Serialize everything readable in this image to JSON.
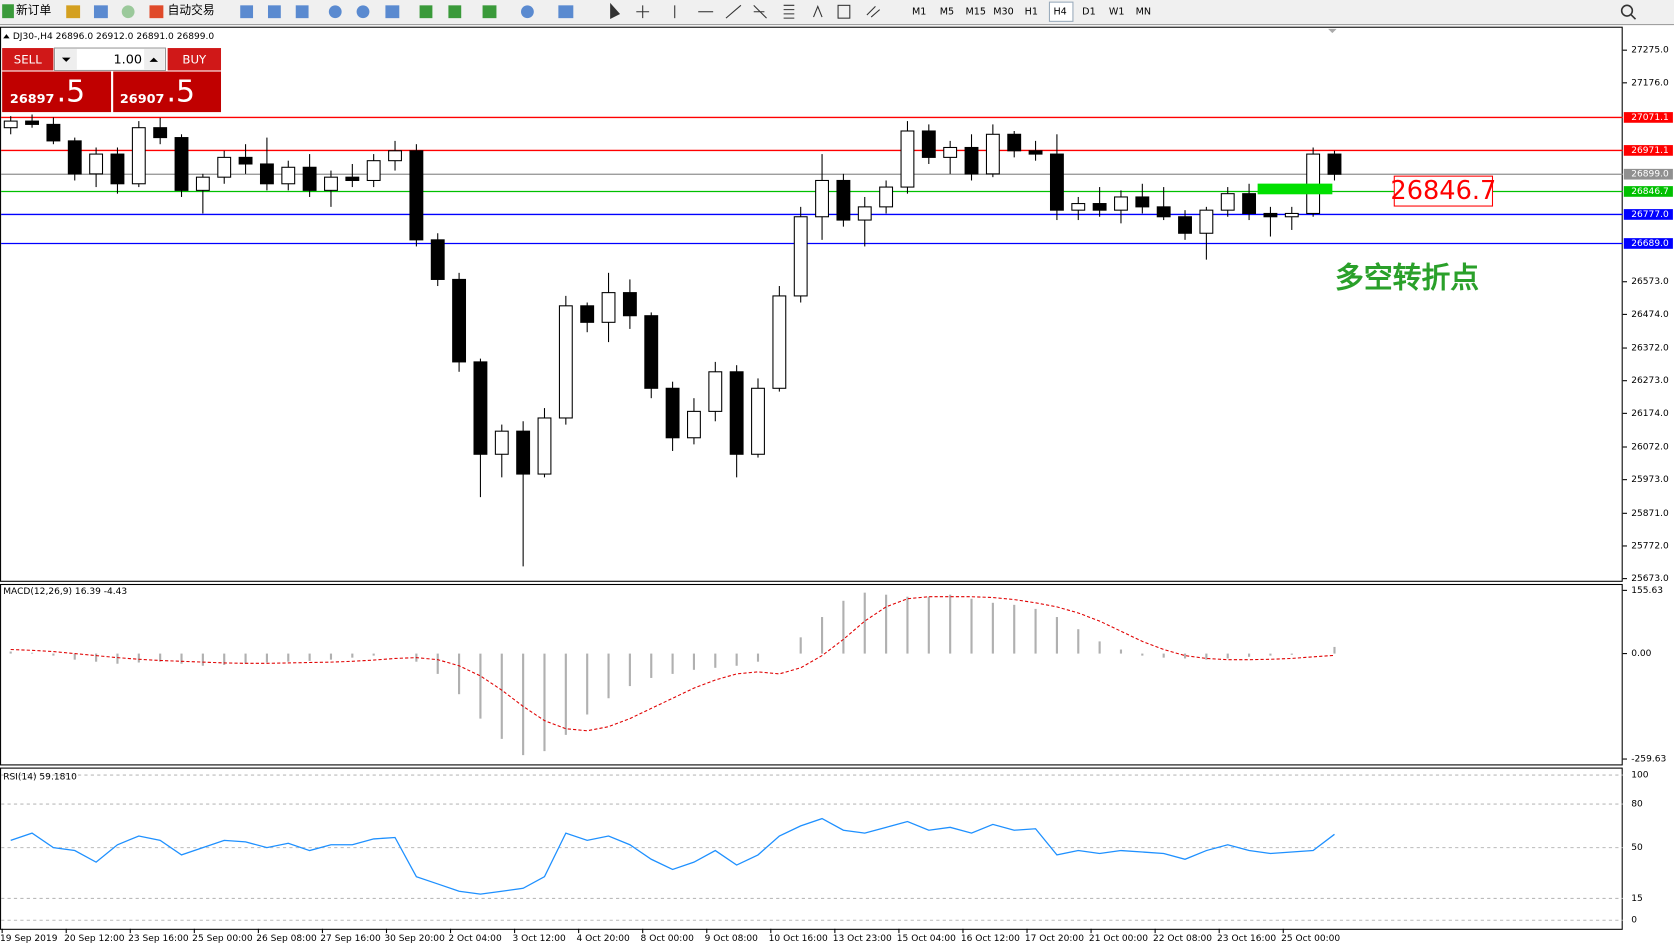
{
  "toolbar": {
    "new_order": "新订单",
    "auto_trading": "自动交易",
    "timeframes": [
      "M1",
      "M5",
      "M15",
      "M30",
      "H1",
      "H4",
      "D1",
      "W1",
      "MN"
    ]
  },
  "trade_panel": {
    "sell": "SELL",
    "buy": "BUY",
    "lot": "1.00",
    "sell_price": "26897",
    "sell_pips": ".5",
    "buy_price": "26907",
    "buy_pips": ".5"
  },
  "annotations": {
    "price_box": "26846.7",
    "note": "多空转折点"
  },
  "chart_data": [
    {
      "type": "candlestick",
      "title": "DJ30-,H4 26896.0 26912.0 26891.0 26899.0",
      "ylim": [
        25673.0,
        27275.0
      ],
      "yticks": [
        {
          "value": 27275.0,
          "label": "27275.0"
        },
        {
          "value": 27176.0,
          "label": "27176.0"
        },
        {
          "value": 26573.0,
          "label": "26573.0"
        },
        {
          "value": 26474.0,
          "label": "26474.0"
        },
        {
          "value": 26372.0,
          "label": "26372.0"
        },
        {
          "value": 26273.0,
          "label": "26273.0"
        },
        {
          "value": 26174.0,
          "label": "26174.0"
        },
        {
          "value": 26072.0,
          "label": "26072.0"
        },
        {
          "value": 25973.0,
          "label": "25973.0"
        },
        {
          "value": 25871.0,
          "label": "25871.0"
        },
        {
          "value": 25772.0,
          "label": "25772.0"
        },
        {
          "value": 25673.0,
          "label": "25673.0"
        }
      ],
      "price_lines": [
        {
          "value": 27071.1,
          "label": "27071.1",
          "color": "#ff0000"
        },
        {
          "value": 26971.1,
          "label": "26971.1",
          "color": "#ff0000"
        },
        {
          "value": 26899.0,
          "label": "26899.0",
          "color": "#909090"
        },
        {
          "value": 26846.7,
          "label": "26846.7",
          "color": "#00c000"
        },
        {
          "value": 26777.0,
          "label": "26777.0",
          "color": "#0000ff"
        },
        {
          "value": 26689.0,
          "label": "26689.0",
          "color": "#0000ff"
        }
      ],
      "xtick_labels": [
        "19 Sep 2019",
        "20 Sep 12:00",
        "23 Sep 16:00",
        "25 Sep 00:00",
        "26 Sep 08:00",
        "27 Sep 16:00",
        "30 Sep 20:00",
        "2 Oct 04:00",
        "3 Oct 12:00",
        "4 Oct 20:00",
        "8 Oct 00:00",
        "9 Oct 08:00",
        "10 Oct 16:00",
        "13 Oct 23:00",
        "15 Oct 04:00",
        "16 Oct 12:00",
        "17 Oct 20:00",
        "21 Oct 00:00",
        "22 Oct 08:00",
        "23 Oct 16:00",
        "25 Oct 00:00"
      ],
      "ohlc": [
        [
          27040,
          27075,
          27020,
          27060
        ],
        [
          27060,
          27080,
          27040,
          27050
        ],
        [
          27050,
          27071,
          26990,
          27000
        ],
        [
          27000,
          27010,
          26880,
          26900
        ],
        [
          26900,
          26980,
          26860,
          26960
        ],
        [
          26960,
          26980,
          26840,
          26870
        ],
        [
          26870,
          27060,
          26860,
          27040
        ],
        [
          27040,
          27070,
          26990,
          27010
        ],
        [
          27010,
          27020,
          26830,
          26850
        ],
        [
          26850,
          26900,
          26780,
          26890
        ],
        [
          26890,
          26970,
          26870,
          26950
        ],
        [
          26950,
          26990,
          26900,
          26930
        ],
        [
          26930,
          27010,
          26850,
          26870
        ],
        [
          26870,
          26940,
          26850,
          26920
        ],
        [
          26920,
          26960,
          26830,
          26850
        ],
        [
          26850,
          26910,
          26800,
          26890
        ],
        [
          26890,
          26930,
          26860,
          26880
        ],
        [
          26880,
          26960,
          26860,
          26940
        ],
        [
          26940,
          27000,
          26910,
          26970
        ],
        [
          26970,
          26990,
          26680,
          26700
        ],
        [
          26700,
          26720,
          26560,
          26580
        ],
        [
          26580,
          26600,
          26300,
          26330
        ],
        [
          26330,
          26340,
          25920,
          26050
        ],
        [
          26050,
          26140,
          25980,
          26120
        ],
        [
          26120,
          26150,
          25710,
          25990
        ],
        [
          25990,
          26190,
          25980,
          26160
        ],
        [
          26160,
          26530,
          26140,
          26500
        ],
        [
          26500,
          26510,
          26420,
          26450
        ],
        [
          26450,
          26600,
          26390,
          26540
        ],
        [
          26540,
          26580,
          26430,
          26470
        ],
        [
          26470,
          26480,
          26220,
          26250
        ],
        [
          26250,
          26270,
          26060,
          26100
        ],
        [
          26100,
          26220,
          26080,
          26180
        ],
        [
          26180,
          26330,
          26150,
          26300
        ],
        [
          26300,
          26320,
          25980,
          26050
        ],
        [
          26050,
          26280,
          26040,
          26250
        ],
        [
          26250,
          26560,
          26240,
          26530
        ],
        [
          26530,
          26800,
          26510,
          26770
        ],
        [
          26770,
          26960,
          26700,
          26880
        ],
        [
          26880,
          26900,
          26740,
          26760
        ],
        [
          26760,
          26830,
          26680,
          26800
        ],
        [
          26800,
          26880,
          26780,
          26860
        ],
        [
          26860,
          27060,
          26840,
          27030
        ],
        [
          27030,
          27050,
          26930,
          26950
        ],
        [
          26950,
          27000,
          26900,
          26980
        ],
        [
          26980,
          27020,
          26880,
          26900
        ],
        [
          26900,
          27050,
          26890,
          27020
        ],
        [
          27020,
          27030,
          26950,
          26970
        ],
        [
          26970,
          27000,
          26940,
          26960
        ],
        [
          26960,
          27020,
          26760,
          26790
        ],
        [
          26790,
          26830,
          26760,
          26810
        ],
        [
          26810,
          26860,
          26770,
          26790
        ],
        [
          26790,
          26850,
          26750,
          26830
        ],
        [
          26830,
          26870,
          26780,
          26800
        ],
        [
          26800,
          26860,
          26760,
          26770
        ],
        [
          26770,
          26790,
          26700,
          26720
        ],
        [
          26720,
          26800,
          26640,
          26790
        ],
        [
          26790,
          26860,
          26770,
          26840
        ],
        [
          26840,
          26870,
          26760,
          26780
        ],
        [
          26780,
          26800,
          26710,
          26770
        ],
        [
          26770,
          26800,
          26730,
          26780
        ],
        [
          26780,
          26980,
          26770,
          26960
        ],
        [
          26960,
          26970,
          26880,
          26899
        ]
      ],
      "up_color": "#ffffff",
      "down_color": "#000000"
    },
    {
      "type": "macd",
      "title": "MACD(12,26,9) 16.39 -4.43",
      "ylim": [
        -259.63,
        155.63
      ],
      "yticks": [
        155.63,
        {
          "value": 0,
          "label": "0.00"
        },
        -259.63
      ],
      "series": [
        {
          "kind": "histogram",
          "color": "#b0b0b0",
          "values": [
            5,
            2,
            -5,
            -15,
            -20,
            -25,
            -22,
            -20,
            -25,
            -30,
            -28,
            -25,
            -22,
            -20,
            -18,
            -15,
            -10,
            -5,
            0,
            -20,
            -50,
            -100,
            -160,
            -210,
            -250,
            -240,
            -200,
            -150,
            -110,
            -80,
            -60,
            -50,
            -40,
            -35,
            -30,
            -20,
            0,
            40,
            90,
            130,
            150,
            145,
            140,
            140,
            145,
            135,
            125,
            120,
            110,
            90,
            60,
            30,
            10,
            -5,
            -10,
            -12,
            -15,
            -12,
            -8,
            -5,
            -3,
            0,
            16.39
          ]
        },
        {
          "kind": "signal",
          "color": "#e00000",
          "values": [
            10,
            8,
            5,
            0,
            -5,
            -10,
            -14,
            -17,
            -19,
            -21,
            -23,
            -24,
            -24,
            -23,
            -22,
            -21,
            -19,
            -16,
            -12,
            -10,
            -15,
            -30,
            -55,
            -90,
            -130,
            -165,
            -185,
            -190,
            -180,
            -160,
            -135,
            -110,
            -85,
            -65,
            -50,
            -45,
            -50,
            -35,
            -5,
            35,
            80,
            115,
            135,
            140,
            140,
            140,
            138,
            133,
            125,
            115,
            100,
            80,
            55,
            30,
            10,
            -5,
            -12,
            -15,
            -15,
            -14,
            -12,
            -8,
            -4.43
          ]
        }
      ]
    },
    {
      "type": "line",
      "title": "RSI(14) 59.1810",
      "ylim": [
        0,
        100
      ],
      "yticks": [
        100,
        80,
        50,
        15,
        0
      ],
      "color": "#1e90ff",
      "values": [
        55,
        60,
        50,
        48,
        40,
        52,
        58,
        55,
        45,
        50,
        55,
        54,
        50,
        53,
        48,
        52,
        52,
        56,
        57,
        30,
        25,
        20,
        18,
        20,
        22,
        30,
        60,
        55,
        58,
        52,
        42,
        35,
        40,
        48,
        38,
        45,
        58,
        65,
        70,
        62,
        60,
        64,
        68,
        62,
        64,
        60,
        66,
        62,
        63,
        45,
        48,
        46,
        48,
        47,
        46,
        42,
        48,
        52,
        48,
        46,
        47,
        48,
        59.181
      ]
    }
  ]
}
